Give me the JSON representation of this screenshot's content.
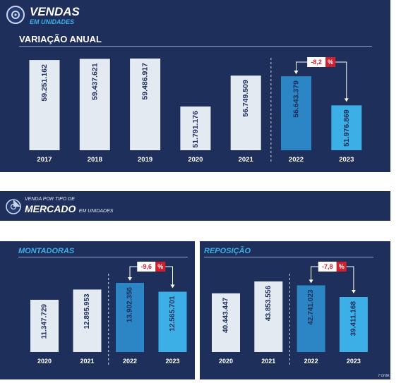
{
  "header": {
    "title": "VENDAS",
    "subtitle": "EM UNIDADES"
  },
  "mercado_header": {
    "small": "VENDA POR TIPO DE",
    "big": "MERCADO",
    "unit": "EM UNIDADES"
  },
  "source": "Fonte: A",
  "colors": {
    "panel": "#1e2f5b",
    "bar_light": "#e3eaf2",
    "bar_2022": "#2c86c6",
    "bar_2023": "#3cb0e6",
    "badge": "#d0202e"
  },
  "chart_data": [
    {
      "id": "annual",
      "type": "bar",
      "title": "VARIAÇÃO ANUAL",
      "categories": [
        "2017",
        "2018",
        "2019",
        "2020",
        "2021",
        "2022",
        "2023"
      ],
      "values": [
        59251162,
        59437621,
        59486917,
        51791176,
        56749509,
        56643379,
        51976869
      ],
      "labels": [
        "59.251.162",
        "59.437.621",
        "59.486.917",
        "51.791.176",
        "56.749.509",
        "56.643.379",
        "51.976.869"
      ],
      "change": "-8,2",
      "change_unit": "%"
    },
    {
      "id": "montadoras",
      "type": "bar",
      "title": "MONTADORAS",
      "categories": [
        "2020",
        "2021",
        "2022",
        "2023"
      ],
      "values": [
        11347729,
        12895953,
        13902356,
        12565701
      ],
      "labels": [
        "11.347.729",
        "12.895.953",
        "13.902.356",
        "12.565.701"
      ],
      "change": "-9,6",
      "change_unit": "%"
    },
    {
      "id": "reposicao",
      "type": "bar",
      "title": "REPOSIÇÃO",
      "categories": [
        "2020",
        "2021",
        "2022",
        "2023"
      ],
      "values": [
        40443447,
        43853556,
        42741023,
        39411168
      ],
      "labels": [
        "40.443.447",
        "43.853.556",
        "42.741.023",
        "39.411.168"
      ],
      "change": "-7,8",
      "change_unit": "%"
    }
  ]
}
